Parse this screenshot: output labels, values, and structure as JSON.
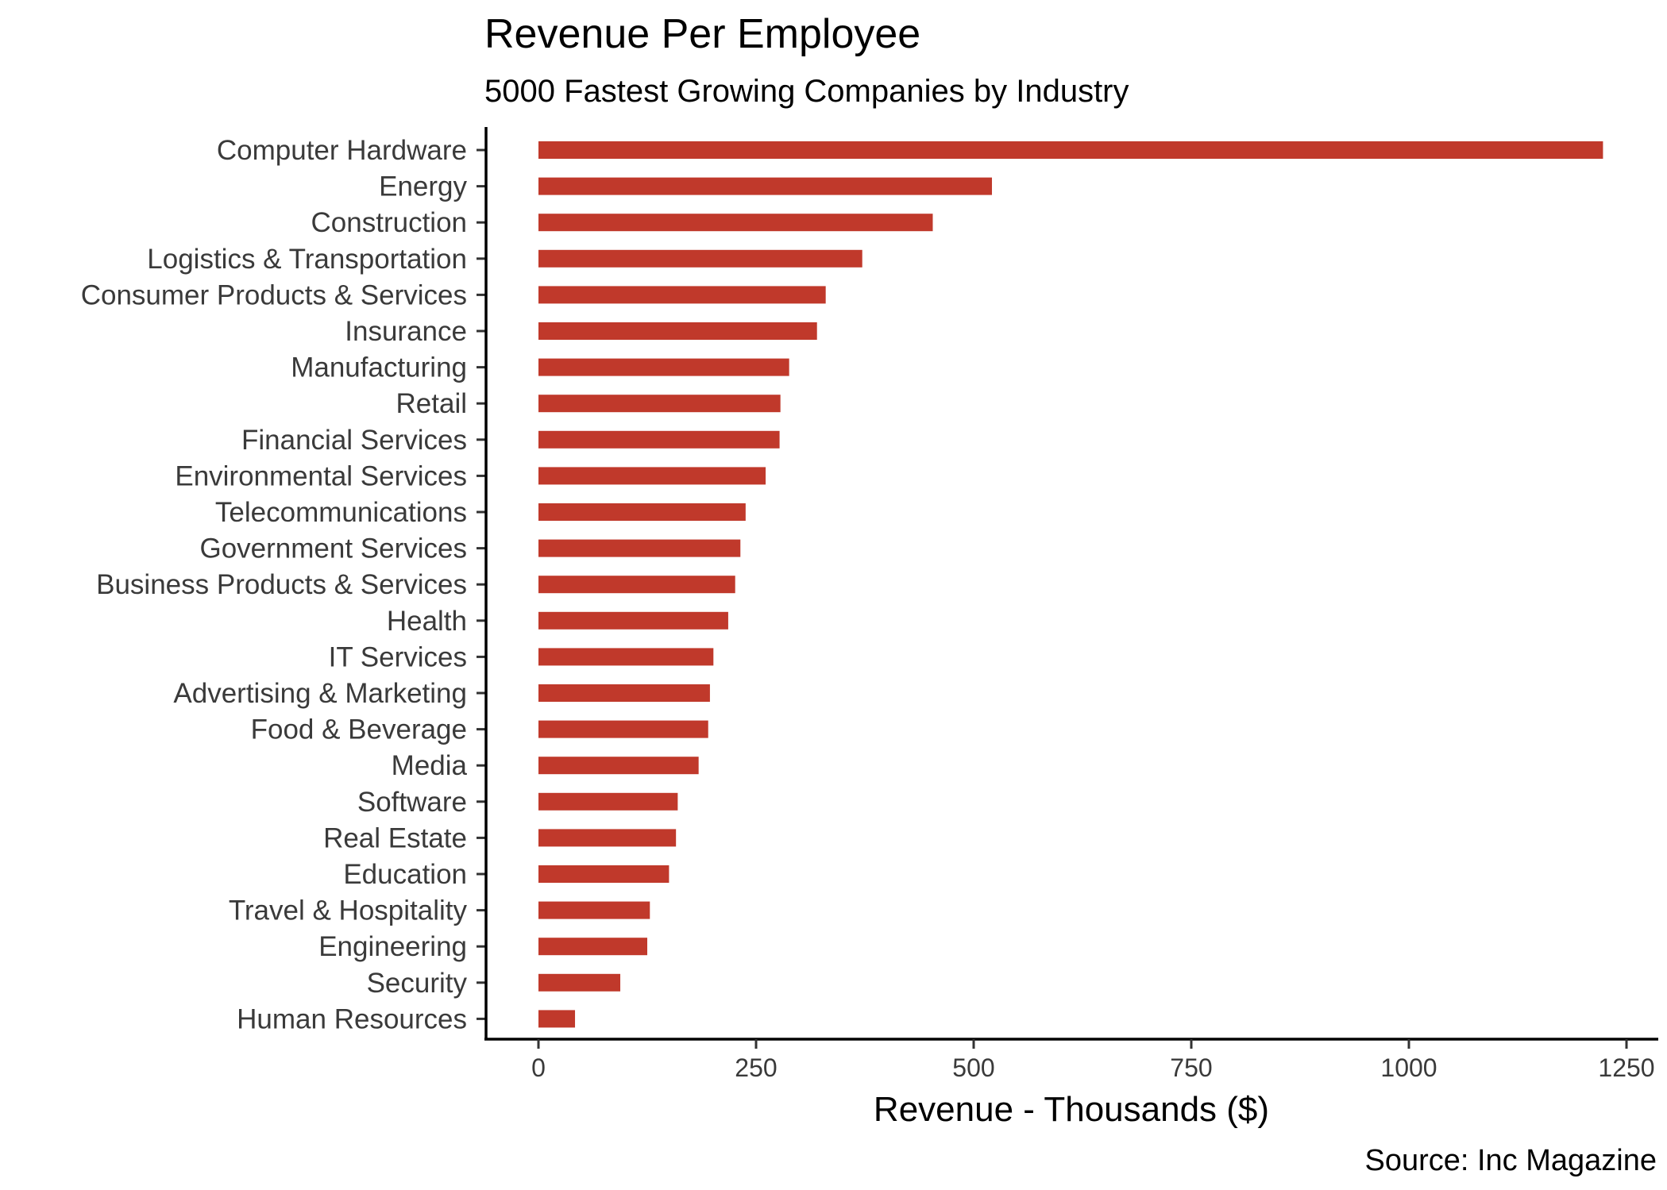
{
  "chart_data": {
    "type": "bar",
    "orientation": "horizontal",
    "title": "Revenue Per Employee",
    "subtitle": "5000 Fastest Growing Companies by Industry",
    "xlabel": "Revenue - Thousands ($)",
    "ylabel": "",
    "caption": "Source: Inc Magazine",
    "xlim": [
      -60,
      1250
    ],
    "xticks": [
      0,
      250,
      500,
      750,
      1000,
      1250
    ],
    "xtick_labels": [
      "0",
      "250",
      "500",
      "750",
      "1000",
      "1250"
    ],
    "grid": false,
    "legend": "none",
    "bar_color": "#c0392b",
    "categories": [
      "Computer Hardware",
      "Energy",
      "Construction",
      "Logistics & Transportation",
      "Consumer Products & Services",
      "Insurance",
      "Manufacturing",
      "Retail",
      "Financial Services",
      "Environmental Services",
      "Telecommunications",
      "Government Services",
      "Business Products & Services",
      "Health",
      "IT Services",
      "Advertising & Marketing",
      "Food & Beverage",
      "Media",
      "Software",
      "Real Estate",
      "Education",
      "Travel & Hospitality",
      "Engineering",
      "Security",
      "Human Resources"
    ],
    "values": [
      1223,
      521,
      453,
      372,
      330,
      320,
      288,
      278,
      277,
      261,
      238,
      232,
      226,
      218,
      201,
      197,
      195,
      184,
      160,
      158,
      150,
      128,
      125,
      94,
      42
    ]
  }
}
